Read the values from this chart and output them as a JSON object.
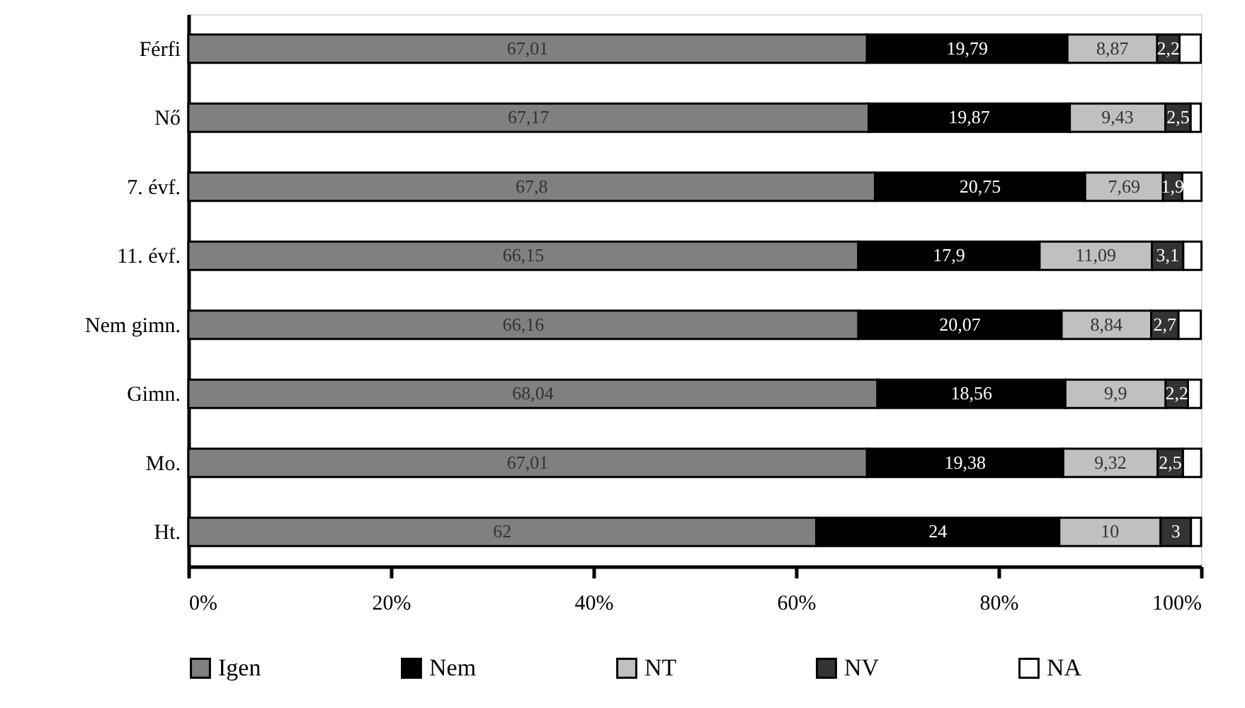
{
  "chart_data": {
    "type": "bar",
    "orientation": "horizontal",
    "stacked": true,
    "categories": [
      "Férfi",
      "Nő",
      "7. évf.",
      "11. évf.",
      "Nem gimn.",
      "Gimn.",
      "Mo.",
      "Ht."
    ],
    "series": [
      {
        "name": "Igen",
        "color": "#808080",
        "values": [
          67.01,
          67.17,
          67.8,
          66.15,
          66.16,
          68.04,
          67.01,
          62
        ],
        "value_labels": [
          "67,01",
          "67,17",
          "67,8",
          "66,15",
          "66,16",
          "68,04",
          "67,01",
          "62"
        ]
      },
      {
        "name": "Nem",
        "color": "#000000",
        "values": [
          19.79,
          19.87,
          20.75,
          17.9,
          20.07,
          18.56,
          19.38,
          24
        ],
        "value_labels": [
          "19,79",
          "19,87",
          "20,75",
          "17,9",
          "20,07",
          "18,56",
          "19,38",
          "24"
        ]
      },
      {
        "name": "NT",
        "color": "#c0c0c0",
        "values": [
          8.87,
          9.43,
          7.69,
          11.09,
          8.84,
          9.9,
          9.32,
          10
        ],
        "value_labels": [
          "8,87",
          "9,43",
          "7,69",
          "11,09",
          "8,84",
          "9,9",
          "9,32",
          "10"
        ]
      },
      {
        "name": "NV",
        "color": "#333333",
        "values": [
          2.2,
          2.5,
          1.9,
          3.1,
          2.7,
          2.2,
          2.5,
          3
        ],
        "value_labels": [
          "2,2",
          "2,5",
          "1,9",
          "3,1",
          "2,7",
          "2,2",
          "2,5",
          "3"
        ]
      },
      {
        "name": "NA",
        "color": "#ffffff",
        "values": [
          2.1,
          1.0,
          1.9,
          1.8,
          2.2,
          1.3,
          1.8,
          1.0
        ]
      }
    ],
    "xlim": [
      0,
      100
    ],
    "xticks": [
      {
        "value": 0,
        "label": "0%"
      },
      {
        "value": 20,
        "label": "20%"
      },
      {
        "value": 40,
        "label": "40%"
      },
      {
        "value": 60,
        "label": "60%"
      },
      {
        "value": 80,
        "label": "80%"
      },
      {
        "value": 100,
        "label": "100%"
      }
    ],
    "grid": false,
    "legend": "bottom"
  }
}
